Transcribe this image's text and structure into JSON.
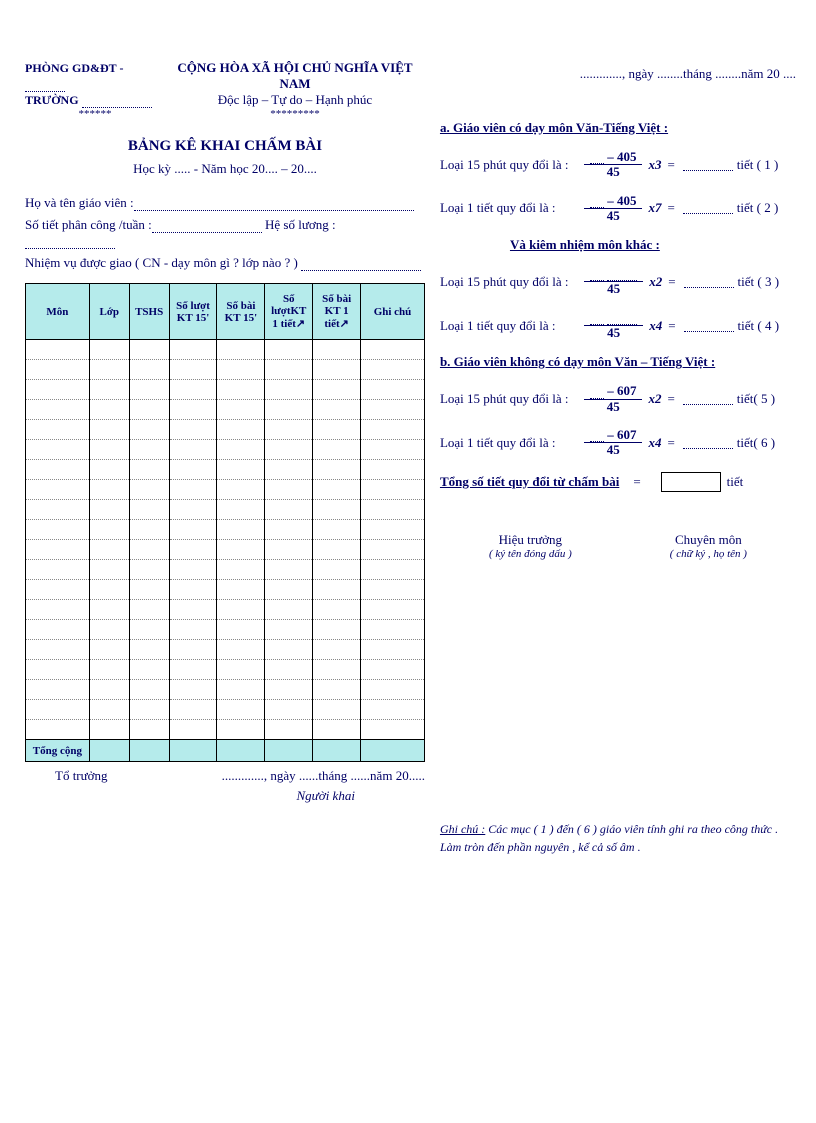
{
  "header": {
    "dept": "PHÒNG GD&ĐT - ",
    "school": "TRƯỜNG ",
    "country": "CỘNG HÒA XÃ HỘI CHỦ NGHĨA VIỆT NAM",
    "motto": "Độc lập – Tự do – Hạnh phúc",
    "stars_left": "******",
    "stars_right": "*********",
    "date_line": "............., ngày ........tháng ........năm 20 ...."
  },
  "title": "BẢNG KÊ KHAI CHẤM BÀI",
  "subtitle": "Học kỳ ..... - Năm học 20.... – 20....",
  "fields": {
    "name": "Họ và tên giáo viên :",
    "periods": "Số tiết phân công /tuần :",
    "coef": "Hệ số lương :",
    "duty": "Nhiệm vụ được giao ( CN - dạy môn gì ? lớp nào ? ) "
  },
  "table": {
    "headers": [
      "Môn",
      "Lớp",
      "TSHS",
      "Số lượt KT 15'",
      "Số bài KT 15'",
      "Số lượtKT 1 tiết↗",
      "Số bài KT 1 tiết↗",
      "Ghi chú"
    ],
    "col_widths": [
      "16%",
      "10%",
      "10%",
      "12%",
      "12%",
      "12%",
      "12%",
      "16%"
    ],
    "header_bg": "#b5ebeb",
    "datarow_count": 20,
    "total_label": "Tổng cộng"
  },
  "below": {
    "left": "Tổ trưởng",
    "right": "............., ngày ......tháng ......năm 20.....",
    "signer": "Người khai"
  },
  "sections": {
    "a_title": "a.  Giáo viên có dạy môn Văn-Tiếng Việt :",
    "sub_title": "Và kiêm nhiệm môn khác :",
    "b_title": "b.  Giáo viên không có dạy môn Văn – Tiếng Việt :",
    "total_line": "Tổng số tiết quy đổi từ chấm bài",
    "tiet": "tiết"
  },
  "formulas": [
    {
      "label": "Loại 15 phút quy đổi là :",
      "num": "– 405",
      "den": "45",
      "mult": "x3",
      "tail": "tiết ( 1 )"
    },
    {
      "label": "Loại 1 tiết quy đổi là :",
      "num": "– 405",
      "den": "45",
      "mult": "x7",
      "tail": "tiết ( 2 )"
    },
    {
      "label": "Loại 15 phút quy đổi là :",
      "num": "",
      "den": "45",
      "mult": "x2",
      "tail": "tiết ( 3 )"
    },
    {
      "label": "Loại 1 tiết quy đổi là :",
      "num": "",
      "den": "45",
      "mult": "x4",
      "tail": "tiết ( 4 )"
    },
    {
      "label": "Loại 15 phút quy đổi là :",
      "num": "– 607",
      "den": "45",
      "mult": "x2",
      "tail": "tiết( 5 )"
    },
    {
      "label": "Loại 1 tiết quy đổi là :",
      "num": "– 607",
      "den": "45",
      "mult": "x4",
      "tail": "tiết( 6 )"
    }
  ],
  "signatures": {
    "left": "Hiệu trưởng",
    "left_sub": "( ký tên đóng dấu )",
    "right": "Chuyên môn",
    "right_sub": "( chữ ký , họ tên )"
  },
  "note": {
    "label": "Ghi chú :",
    "text": " Các mục ( 1 ) đến ( 6 ) giáo viên tính ghi ra theo công thức . Làm tròn đến phần nguyên , kể cả số âm ."
  }
}
